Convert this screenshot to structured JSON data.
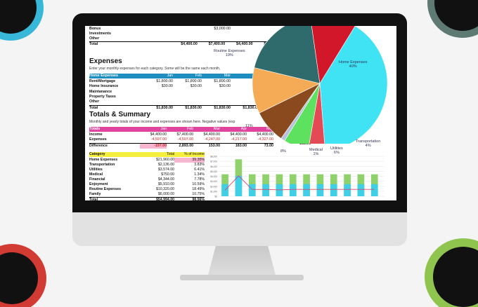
{
  "colors": {
    "header_blue": "#1e8ec0",
    "header_pink": "#e0449f",
    "header_yellow": "#f4ef3e"
  },
  "top_rows": {
    "bonus_label": "Bonus",
    "bonus_value": "$3,000.00",
    "investments_label": "Investments",
    "other_label": "Other",
    "total_label": "Total",
    "totals": [
      "$4,400.00",
      "$7,400.00",
      "$4,400.00",
      "$4,400.00"
    ]
  },
  "expenses": {
    "title": "Expenses",
    "subtitle": "Enter your monthly expenses for each category. Some will be the same each month,",
    "header": [
      "Home Expenses",
      "Jan",
      "Feb",
      "Mar",
      "Apr"
    ],
    "rows": [
      {
        "label": "Rent/Mortgage",
        "values": [
          "$1,800.00",
          "$1,800.00",
          "$1,800.00",
          "$1,8"
        ]
      },
      {
        "label": "Home Insurance",
        "values": [
          "$30.00",
          "$30.00",
          "$30.00",
          "$"
        ]
      },
      {
        "label": "Maintanance",
        "values": [
          "",
          "",
          "",
          ""
        ]
      },
      {
        "label": "Property Taxes",
        "values": [
          "",
          "",
          "",
          ""
        ]
      },
      {
        "label": "Other",
        "values": [
          "",
          "",
          "",
          ""
        ]
      },
      {
        "label": "Total",
        "values": [
          "$1,830.00",
          "$1,830.00",
          "$1,830.00",
          "$1,830.00"
        ]
      }
    ]
  },
  "totals_summary": {
    "title": "Totals & Summary",
    "subtitle": "Monthly and yearly totals of your income and expenses are shown here. Negative values (exp",
    "header": [
      "Totals",
      "Jan",
      "Feb",
      "Mar",
      "Apr",
      "May"
    ],
    "rows": [
      {
        "label": "Income",
        "values": [
          "$4,400.00",
          "$7,400.00",
          "$4,400.00",
          "$4,400.00",
          "$4,400.00"
        ]
      },
      {
        "label": "Expenses",
        "values": [
          "-4,597.00",
          "-4,507.00",
          "-4,247.00",
          "-4,217.00",
          "-4,327.00"
        ]
      },
      {
        "label": "Difference",
        "values": [
          "-197.00",
          "2,893.00",
          "153.00",
          "183.00",
          "73.00"
        ]
      }
    ],
    "extra_value": "183.00"
  },
  "category_table": {
    "header": [
      "Category",
      "Total",
      "% of Income"
    ],
    "rows": [
      {
        "label": "Home Expenses",
        "total": "$21,960.00",
        "pct": "39.35%"
      },
      {
        "label": "Transportation",
        "total": "$2,136.00",
        "pct": "3.83%"
      },
      {
        "label": "Utilities",
        "total": "$3,574.00",
        "pct": "6.41%"
      },
      {
        "label": "Medical",
        "total": "$750.00",
        "pct": "1.34%"
      },
      {
        "label": "Financial",
        "total": "$4,344.00",
        "pct": "7.78%"
      },
      {
        "label": "Enjoyment",
        "total": "$5,910.00",
        "pct": "10.59%"
      },
      {
        "label": "Routine Expenses",
        "total": "$10,320.00",
        "pct": "18.49%"
      },
      {
        "label": "Family",
        "total": "$6,000.00",
        "pct": "10.75%"
      },
      {
        "label": "Total",
        "total": "$54,994.00",
        "pct": "98.56%"
      }
    ]
  },
  "pie_labels": {
    "routine": "Routine Expenses",
    "routine_pct": "19%",
    "home": "Home Expenses",
    "home_pct": "40%",
    "eleven": "11%",
    "eight": "8%",
    "medical": "Medical",
    "medical_pct": "1%",
    "utilities": "Utilities",
    "utilities_pct": "6%",
    "transportation": "Transportation",
    "transportation_pct": "4%"
  },
  "chart_data": {
    "type": "bar",
    "ylim": [
      0,
      8000
    ],
    "yticks": [
      "$8,000",
      "$7,000",
      "$6,000",
      "$5,000",
      "$4,000",
      "$3,000",
      "$2,000",
      "$1,000",
      "$0"
    ],
    "income": [
      4400,
      7400,
      4400,
      4400,
      4400,
      4400,
      4400,
      4400,
      4400,
      4400,
      4400,
      4400
    ],
    "difference": [
      -197,
      2893,
      153,
      183,
      73,
      183,
      183,
      183,
      183,
      183,
      183,
      183
    ]
  }
}
